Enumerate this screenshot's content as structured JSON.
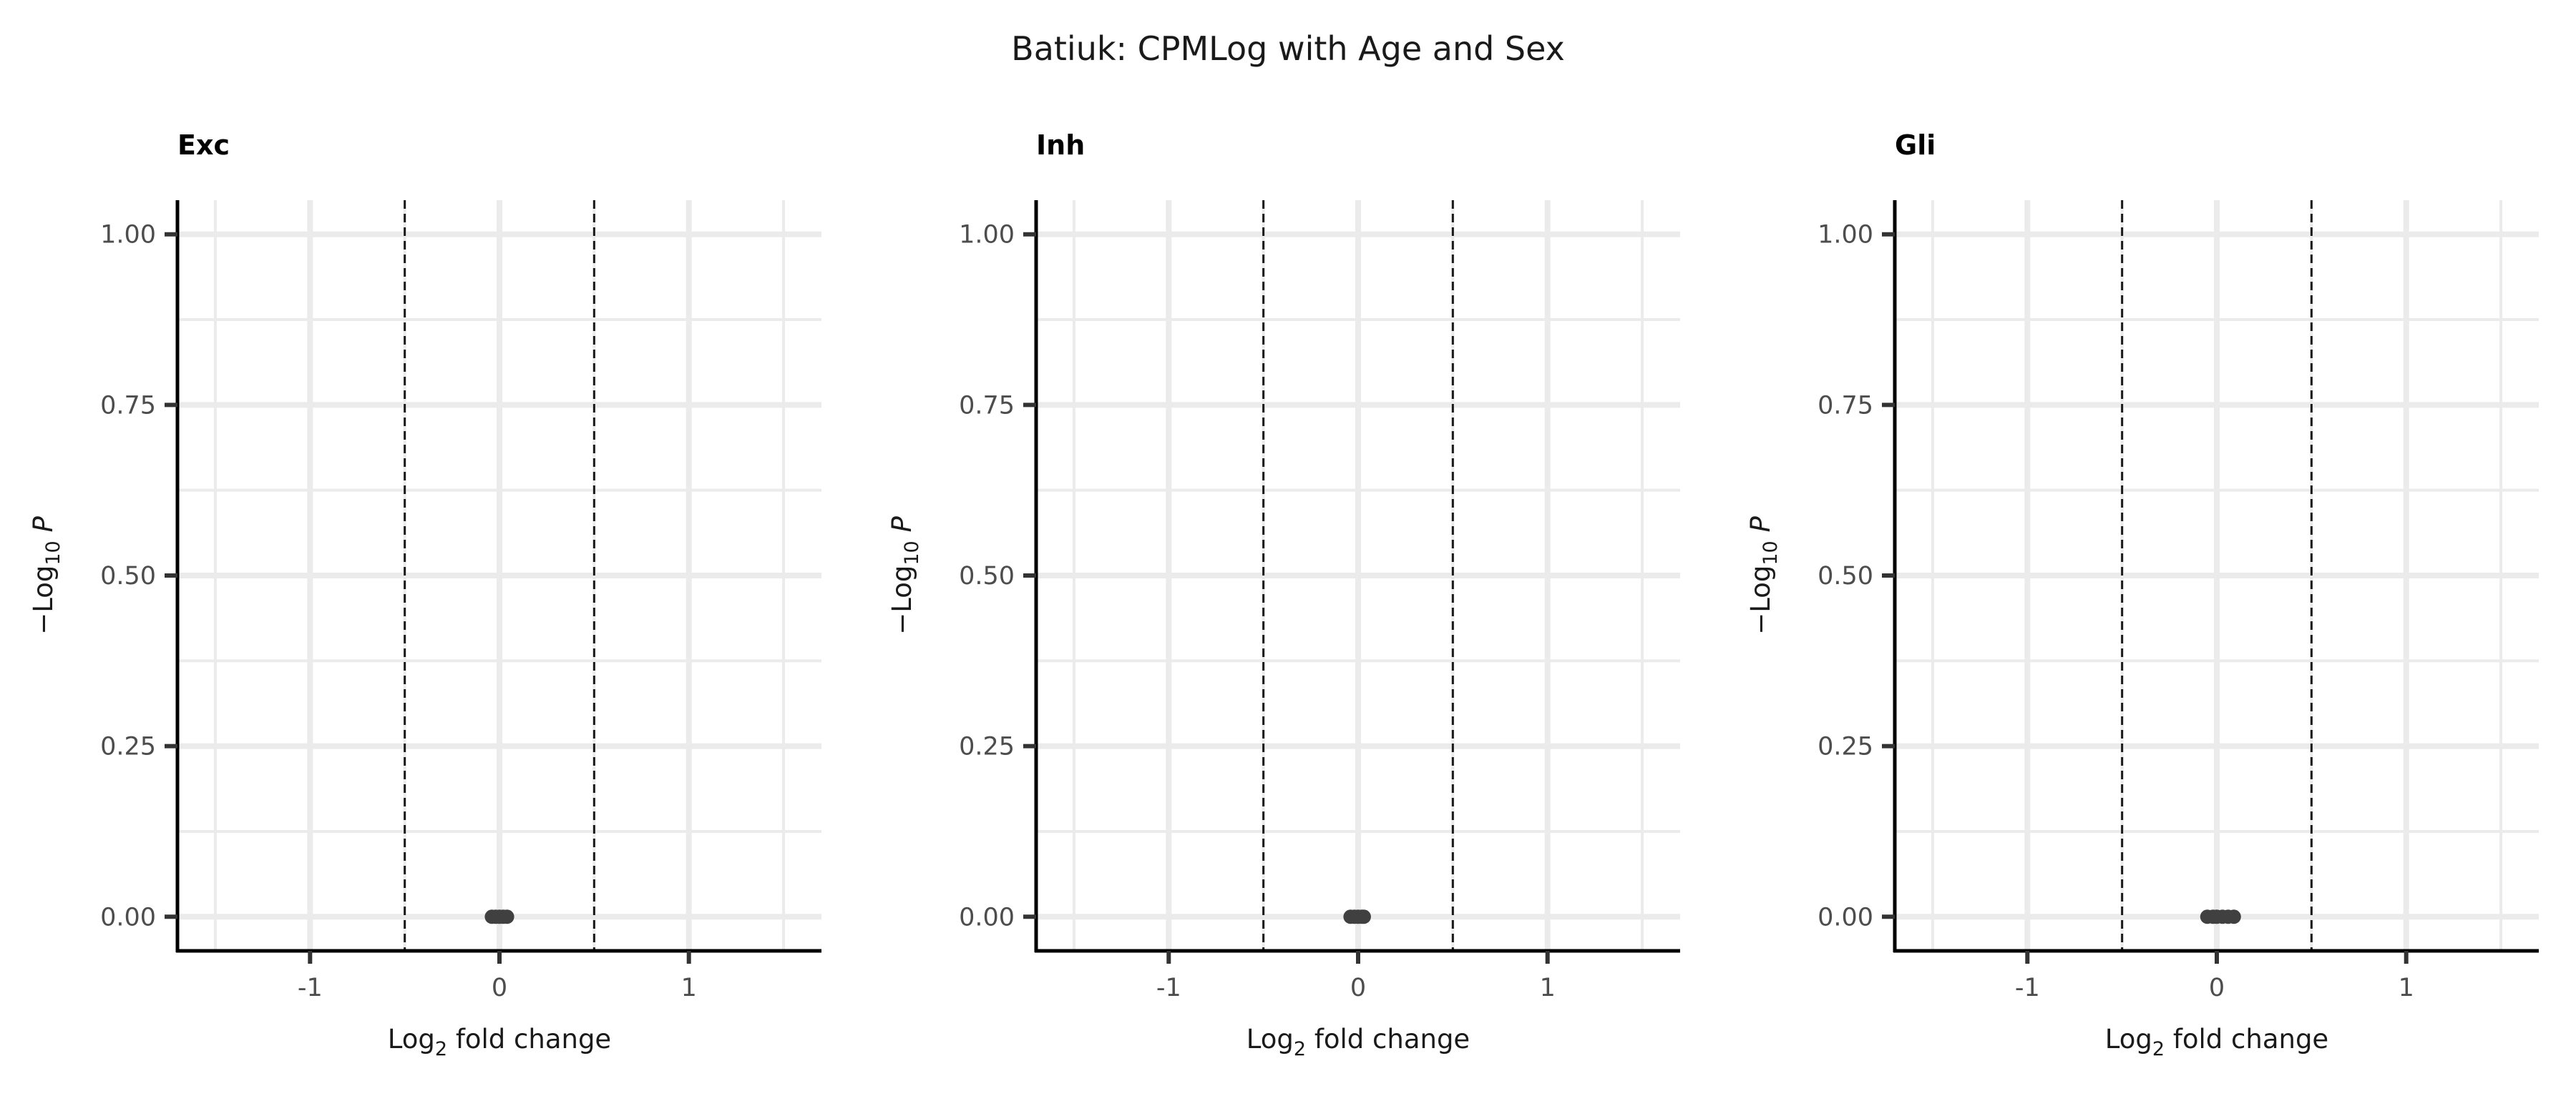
{
  "chart_data": {
    "type": "scatter",
    "title": "Batiuk: CPMLog with Age and Sex",
    "xlabel": "Log",
    "xlabel_subscript": "2",
    "xlabel_suffix": " fold change",
    "ylabel_prefix": "−Log",
    "ylabel_subscript": "10",
    "ylabel_suffix": "P",
    "xlim": [
      -1.7,
      1.7
    ],
    "ylim": [
      -0.05,
      1.05
    ],
    "x_ticks": [
      -1,
      0,
      1
    ],
    "x_tick_labels": [
      "-1",
      "0",
      "1"
    ],
    "y_ticks": [
      0,
      0.25,
      0.5,
      0.75,
      1
    ],
    "y_tick_labels": [
      "0.00",
      "0.25",
      "0.50",
      "0.75",
      "1.00"
    ],
    "fold_change_cutoffs": [
      -0.5,
      0.5
    ],
    "grid": true,
    "legend": "none",
    "point_color": "#404040",
    "cutoff_line_color": "#1a1a1a",
    "facets": [
      {
        "name": "Exc",
        "points": [
          {
            "x": -0.04,
            "y": 0
          },
          {
            "x": -0.02,
            "y": 0
          },
          {
            "x": 0,
            "y": 0
          },
          {
            "x": 0.02,
            "y": 0
          },
          {
            "x": 0.04,
            "y": 0
          }
        ]
      },
      {
        "name": "Inh",
        "points": [
          {
            "x": -0.04,
            "y": 0
          },
          {
            "x": -0.02,
            "y": 0
          },
          {
            "x": 0,
            "y": 0
          },
          {
            "x": 0.02,
            "y": 0
          },
          {
            "x": 0.03,
            "y": 0
          }
        ]
      },
      {
        "name": "Gli",
        "points": [
          {
            "x": -0.05,
            "y": 0
          },
          {
            "x": -0.02,
            "y": 0
          },
          {
            "x": 0,
            "y": 0
          },
          {
            "x": 0.03,
            "y": 0
          },
          {
            "x": 0.06,
            "y": 0
          },
          {
            "x": 0.09,
            "y": 0
          }
        ]
      }
    ]
  }
}
